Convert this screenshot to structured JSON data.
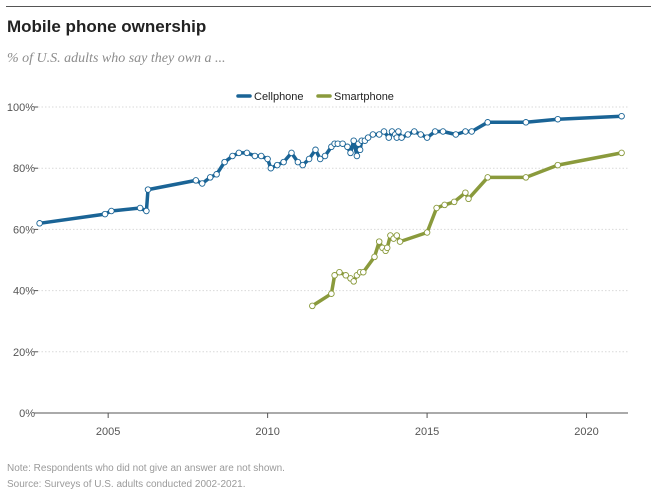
{
  "header": {
    "title": "Mobile phone ownership",
    "subtitle": "% of U.S. adults who say they own a ..."
  },
  "footer": {
    "note": "Note: Respondents who did not give an answer are not shown.",
    "source": "Source: Surveys of U.S. adults conducted 2002-2021."
  },
  "colors": {
    "cellphone": "#1a6496",
    "smartphone": "#8a9a3c",
    "grid": "#d9d9d9",
    "axis": "#555555",
    "marker_fill": "#ffffff"
  },
  "chart_data": {
    "type": "line",
    "title": "Mobile phone ownership",
    "subtitle": "% of U.S. adults who say they own a ...",
    "xlabel": "",
    "ylabel": "",
    "xlim": [
      2002.8,
      2021.3
    ],
    "ylim": [
      0,
      100
    ],
    "x_ticks": [
      2005,
      2010,
      2015,
      2020
    ],
    "y_ticks": [
      0,
      20,
      40,
      60,
      80,
      100
    ],
    "y_tick_labels": [
      "0%",
      "20%",
      "40%",
      "60%",
      "80%",
      "100%"
    ],
    "grid": "horizontal",
    "legend_position": "top-center",
    "series": [
      {
        "name": "Cellphone",
        "x": [
          2002.85,
          2004.9,
          2005.1,
          2006.0,
          2006.2,
          2006.25,
          2007.75,
          2007.95,
          2008.2,
          2008.4,
          2008.65,
          2008.9,
          2009.1,
          2009.35,
          2009.6,
          2009.8,
          2010.0,
          2010.1,
          2010.3,
          2010.5,
          2010.75,
          2010.95,
          2011.1,
          2011.3,
          2011.5,
          2011.65,
          2011.8,
          2012.0,
          2012.1,
          2012.2,
          2012.35,
          2012.5,
          2012.6,
          2012.7,
          2012.8,
          2012.85,
          2012.9,
          2012.95,
          2013.05,
          2013.15,
          2013.3,
          2013.5,
          2013.65,
          2013.8,
          2013.9,
          2014.0,
          2014.05,
          2014.1,
          2014.2,
          2014.4,
          2014.6,
          2014.8,
          2015.0,
          2015.25,
          2015.5,
          2015.9,
          2016.2,
          2016.4,
          2016.9,
          2018.1,
          2019.1,
          2021.1
        ],
        "values": [
          62,
          65,
          66,
          67,
          66,
          73,
          76,
          75,
          77,
          78,
          82,
          84,
          85,
          85,
          84,
          84,
          83,
          80,
          81,
          82,
          85,
          82,
          81,
          83,
          86,
          83,
          84,
          87,
          88,
          88,
          88,
          87,
          85,
          89,
          84,
          88,
          86,
          89,
          89,
          90,
          91,
          91,
          92,
          90,
          92,
          91,
          90,
          92,
          90,
          91,
          92,
          91,
          90,
          92,
          92,
          91,
          92,
          92,
          95,
          95,
          96,
          97
        ]
      },
      {
        "name": "Smartphone",
        "x": [
          2011.4,
          2012.0,
          2012.1,
          2012.25,
          2012.45,
          2012.6,
          2012.7,
          2012.8,
          2012.9,
          2013.0,
          2013.35,
          2013.5,
          2013.6,
          2013.7,
          2013.75,
          2013.85,
          2013.95,
          2014.05,
          2014.15,
          2015.0,
          2015.3,
          2015.55,
          2015.85,
          2016.2,
          2016.3,
          2016.9,
          2018.1,
          2019.1,
          2021.1
        ],
        "values": [
          35,
          39,
          45,
          46,
          45,
          44,
          43,
          45,
          46,
          46,
          51,
          56,
          54,
          53,
          54,
          58,
          57,
          58,
          56,
          59,
          67,
          68,
          69,
          72,
          70,
          77,
          77,
          81,
          85
        ]
      }
    ]
  }
}
